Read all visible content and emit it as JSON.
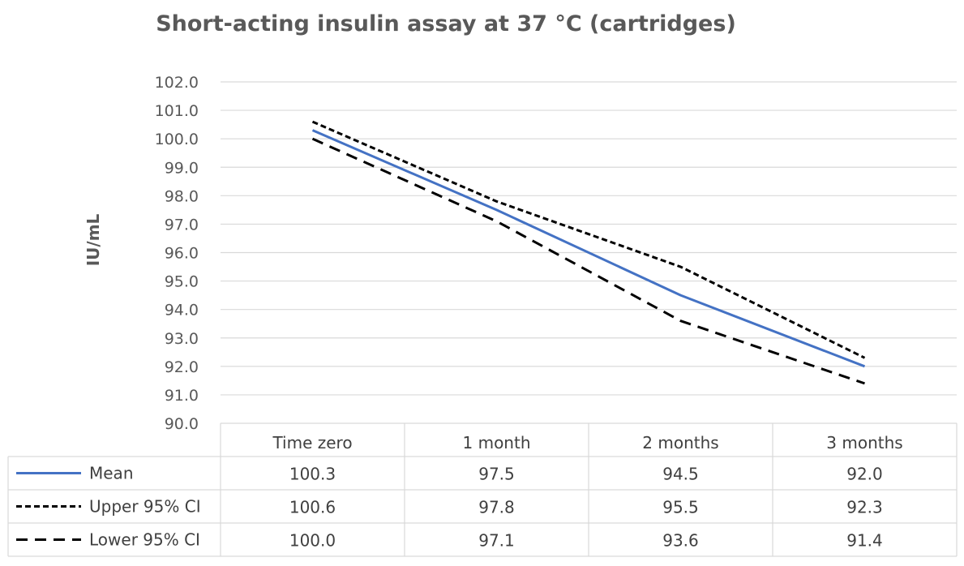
{
  "chart_data": {
    "type": "line",
    "title": "Short-acting insulin assay at 37 °C (cartridges)",
    "xlabel": "",
    "ylabel": "IU/mL",
    "ylim": [
      90.0,
      102.0
    ],
    "ytick_step": 1.0,
    "yticks": [
      "90.0",
      "91.0",
      "92.0",
      "93.0",
      "94.0",
      "95.0",
      "96.0",
      "97.0",
      "98.0",
      "99.0",
      "100.0",
      "101.0",
      "102.0"
    ],
    "categories": [
      "Time zero",
      "1 month",
      "2 months",
      "3 months"
    ],
    "grid": true,
    "legend": "data-table",
    "series": [
      {
        "name": "Mean",
        "values": [
          100.3,
          97.5,
          94.5,
          92.0
        ],
        "labels": [
          "100.3",
          "97.5",
          "94.5",
          "92.0"
        ],
        "color": "#4472c4",
        "style": "solid"
      },
      {
        "name": "Upper 95% CI",
        "values": [
          100.6,
          97.8,
          95.5,
          92.3
        ],
        "labels": [
          "100.6",
          "97.8",
          "95.5",
          "92.3"
        ],
        "color": "#000000",
        "style": "short-dash"
      },
      {
        "name": "Lower 95% CI",
        "values": [
          100.0,
          97.1,
          93.6,
          91.4
        ],
        "labels": [
          "100.0",
          "97.1",
          "93.6",
          "91.4"
        ],
        "color": "#000000",
        "style": "long-dash"
      }
    ]
  }
}
